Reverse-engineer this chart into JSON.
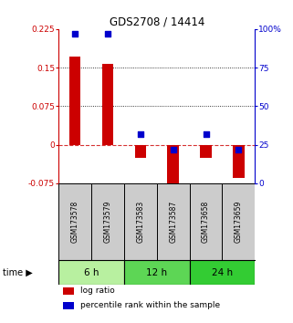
{
  "title": "GDS2708 / 14414",
  "samples": [
    "GSM173578",
    "GSM173579",
    "GSM173583",
    "GSM173587",
    "GSM173658",
    "GSM173659"
  ],
  "log_ratio": [
    0.172,
    0.158,
    -0.025,
    -0.086,
    -0.025,
    -0.065
  ],
  "percentile_rank": [
    97.0,
    97.0,
    32.0,
    22.0,
    32.0,
    22.0
  ],
  "time_groups": [
    {
      "label": "6 h",
      "start": 0,
      "end": 2,
      "color": "#b8f0a0"
    },
    {
      "label": "12 h",
      "start": 2,
      "end": 4,
      "color": "#5dd655"
    },
    {
      "label": "24 h",
      "start": 4,
      "end": 6,
      "color": "#33cc33"
    }
  ],
  "ylim_left": [
    -0.075,
    0.225
  ],
  "ylim_right": [
    0,
    100
  ],
  "yticks_left": [
    -0.075,
    0,
    0.075,
    0.15,
    0.225
  ],
  "yticks_right": [
    0,
    25,
    50,
    75,
    100
  ],
  "ytick_labels_left": [
    "-0.075",
    "0",
    "0.075",
    "0.15",
    "0.225"
  ],
  "ytick_labels_right": [
    "0",
    "25",
    "50",
    "75",
    "100%"
  ],
  "hlines": [
    0.075,
    0.15
  ],
  "bar_color": "#cc0000",
  "dot_color": "#0000cc",
  "bar_width": 0.35,
  "dot_size": 25,
  "background_color": "#ffffff",
  "sample_box_color": "#cccccc",
  "time_label": "time",
  "legend_red": "log ratio",
  "legend_blue": "percentile rank within the sample"
}
